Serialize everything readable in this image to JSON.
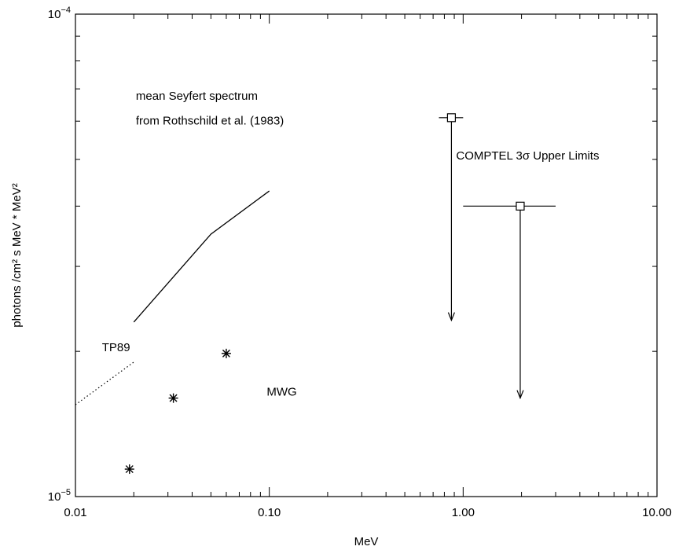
{
  "chart_data": {
    "type": "scatter",
    "xlabel": "MeV",
    "ylabel": "photons /cm² s MeV * MeV²",
    "xscale": "log",
    "yscale": "log",
    "xlim": [
      0.01,
      10.0
    ],
    "ylim": [
      1e-05,
      0.0001
    ],
    "x_tick_labels": [
      "0.01",
      "0.10",
      "1.00",
      "10.00"
    ],
    "x_ticks": [
      0.01,
      0.1,
      1.0,
      10.0
    ],
    "y_ticks": [
      1e-05,
      0.0001
    ],
    "y_tick_labels": [
      {
        "base": "10",
        "exp": "−5"
      },
      {
        "base": "10",
        "exp": "−4"
      }
    ],
    "series": [
      {
        "name": "mean Seyfert spectrum",
        "style": "solid-line",
        "x": [
          0.02,
          0.05,
          0.1
        ],
        "y": [
          2.3e-05,
          3.5e-05,
          4.3e-05
        ]
      },
      {
        "name": "TP89",
        "style": "dotted-line",
        "x": [
          0.01,
          0.02
        ],
        "y": [
          1.55e-05,
          1.9e-05
        ]
      },
      {
        "name": "MWG",
        "style": "asterisk",
        "x": [
          0.019,
          0.032,
          0.06
        ],
        "y": [
          1.14e-05,
          1.6e-05,
          1.98e-05
        ]
      },
      {
        "name": "COMPTEL 3σ Upper Limits",
        "style": "upper-limit",
        "points": [
          {
            "x": 0.87,
            "xerr": [
              0.75,
              1.0
            ],
            "y": 6.1e-05,
            "arrow_to": 2.32e-05
          },
          {
            "x": 1.97,
            "xerr": [
              1.0,
              3.0
            ],
            "y": 4e-05,
            "arrow_to": 1.6e-05
          }
        ]
      }
    ],
    "annotations": [
      {
        "id": "seyfert1",
        "text": "mean Seyfert spectrum",
        "x": 0.0205,
        "y": 6.65e-05
      },
      {
        "id": "seyfert2",
        "text": "from Rothschild et al. (1983)",
        "x": 0.0205,
        "y": 5.9e-05
      },
      {
        "id": "tp89",
        "text": "TP89",
        "x": 0.0137,
        "y": 2e-05
      },
      {
        "id": "mwg",
        "text": "MWG",
        "x": 0.097,
        "y": 1.62e-05
      },
      {
        "id": "comptel",
        "text": "COMPTEL 3σ Upper Limits",
        "x": 0.92,
        "y": 5e-05
      }
    ],
    "grid": false,
    "legend": "none"
  }
}
